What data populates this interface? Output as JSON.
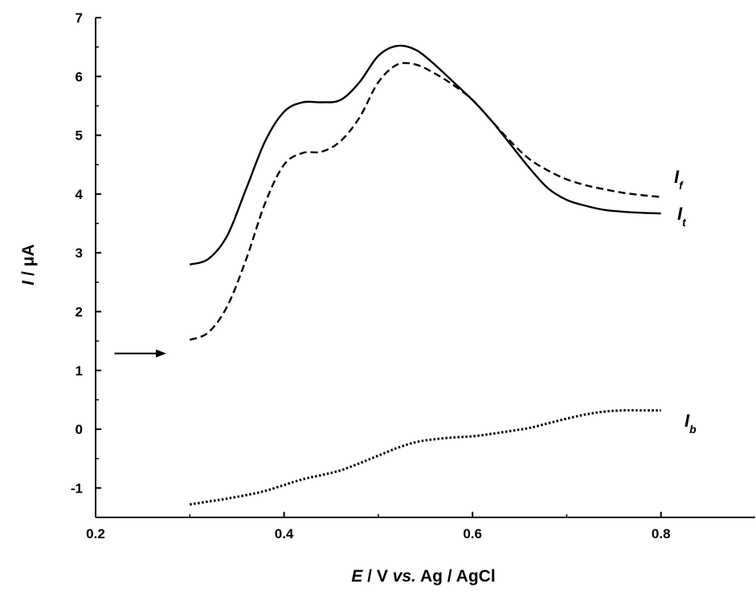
{
  "chart_data": {
    "type": "line",
    "xlabel": {
      "parts": [
        {
          "text": "E",
          "italic": true
        },
        {
          "text": " / V ",
          "italic": false
        },
        {
          "text": "vs.",
          "italic": true
        },
        {
          "text": " Ag / AgCl",
          "italic": false
        }
      ]
    },
    "ylabel": {
      "parts": [
        {
          "text": "I",
          "italic": true
        },
        {
          "text": " / μA",
          "italic": false
        }
      ]
    },
    "xlim": [
      0.2,
      0.9
    ],
    "ylim": [
      -1.5,
      7
    ],
    "xticks": [
      0.2,
      0.4,
      0.6,
      0.8
    ],
    "xtick_labels": [
      "0.2",
      "0.4",
      "0.6",
      "0.8"
    ],
    "yticks": [
      -1,
      0,
      1,
      2,
      3,
      4,
      5,
      6,
      7
    ],
    "ytick_labels": [
      "-1",
      "0",
      "1",
      "2",
      "3",
      "4",
      "5",
      "6",
      "7"
    ],
    "grid": false,
    "series": [
      {
        "label_main": "I",
        "label_sub": "t",
        "style": "solid",
        "x": [
          0.3,
          0.32,
          0.34,
          0.36,
          0.38,
          0.4,
          0.42,
          0.44,
          0.46,
          0.48,
          0.5,
          0.52,
          0.54,
          0.56,
          0.58,
          0.6,
          0.62,
          0.64,
          0.66,
          0.68,
          0.7,
          0.72,
          0.74,
          0.76,
          0.78,
          0.8
        ],
        "y": [
          2.8,
          2.9,
          3.3,
          4.1,
          4.9,
          5.4,
          5.56,
          5.56,
          5.6,
          5.9,
          6.35,
          6.52,
          6.45,
          6.2,
          5.9,
          5.6,
          5.25,
          4.85,
          4.45,
          4.1,
          3.9,
          3.8,
          3.73,
          3.7,
          3.68,
          3.67
        ]
      },
      {
        "label_main": "I",
        "label_sub": "f",
        "style": "dashed",
        "x": [
          0.3,
          0.32,
          0.34,
          0.36,
          0.38,
          0.4,
          0.42,
          0.44,
          0.46,
          0.48,
          0.5,
          0.52,
          0.54,
          0.56,
          0.58,
          0.6,
          0.62,
          0.64,
          0.66,
          0.68,
          0.7,
          0.72,
          0.74,
          0.76,
          0.78,
          0.8
        ],
        "y": [
          1.52,
          1.65,
          2.1,
          2.9,
          3.85,
          4.5,
          4.7,
          4.72,
          4.9,
          5.3,
          5.9,
          6.2,
          6.2,
          6.05,
          5.85,
          5.6,
          5.25,
          4.9,
          4.6,
          4.4,
          4.25,
          4.15,
          4.08,
          4.02,
          3.98,
          3.95
        ]
      },
      {
        "label_main": "I",
        "label_sub": "b",
        "style": "dotted",
        "x": [
          0.3,
          0.32,
          0.34,
          0.36,
          0.38,
          0.4,
          0.42,
          0.44,
          0.46,
          0.48,
          0.5,
          0.52,
          0.54,
          0.56,
          0.58,
          0.6,
          0.62,
          0.64,
          0.66,
          0.68,
          0.7,
          0.72,
          0.74,
          0.76,
          0.78,
          0.8
        ],
        "y": [
          -1.28,
          -1.23,
          -1.18,
          -1.12,
          -1.05,
          -0.95,
          -0.85,
          -0.78,
          -0.7,
          -0.58,
          -0.45,
          -0.32,
          -0.22,
          -0.17,
          -0.14,
          -0.12,
          -0.08,
          -0.03,
          0.02,
          0.1,
          0.18,
          0.25,
          0.3,
          0.32,
          0.32,
          0.32
        ]
      }
    ],
    "annotation_arrow": {
      "x_start": 0.22,
      "x_end": 0.275,
      "y": 1.22
    }
  }
}
